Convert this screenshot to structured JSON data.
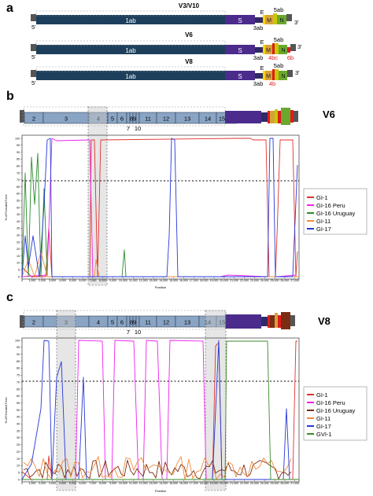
{
  "panels": {
    "a": {
      "letter": "a",
      "genomes": [
        {
          "name": "V3/V10",
          "labels": {
            "end5": "5'",
            "end3": "3'",
            "orf1ab": "1ab",
            "s": "S",
            "e": "E",
            "m": "M",
            "n": "N",
            "orf3ab": "3ab",
            "orf5ab": "5ab"
          }
        },
        {
          "name": "V6",
          "labels": {
            "end5": "5'",
            "end3": "3'",
            "orf1ab": "1ab",
            "s": "S",
            "e": "E",
            "m": "M",
            "n": "N",
            "orf3ab": "3ab",
            "orf5ab": "5ab",
            "extra1": "4bc",
            "extra2": "6b"
          }
        },
        {
          "name": "V8",
          "labels": {
            "end5": "5'",
            "end3": "3'",
            "orf1ab": "1ab",
            "s": "S",
            "e": "E",
            "m": "M",
            "n": "N",
            "orf3ab": "3ab",
            "orf5ab": "5ab",
            "extra1": "4b"
          }
        }
      ]
    },
    "b": {
      "letter": "b",
      "title": "V6",
      "nsps": [
        "2",
        "3",
        "4",
        "5",
        "6",
        "7",
        "8",
        "9",
        "10",
        "11",
        "12",
        "13",
        "14",
        "15",
        "16"
      ],
      "y_axis_label": "% of Permuted Trees",
      "x_axis_label": "Position",
      "legend": [
        "GI-1",
        "GI-16 Peru",
        "GI-16 Uruguay",
        "GI-11",
        "GI-17"
      ]
    },
    "c": {
      "letter": "c",
      "title": "V8",
      "nsps": [
        "2",
        "3",
        "4",
        "5",
        "6",
        "7",
        "8",
        "9",
        "10",
        "11",
        "12",
        "13",
        "14",
        "15",
        "16"
      ],
      "y_axis_label": "% of Permuted Trees",
      "x_axis_label": "Position",
      "legend": [
        "GI-1",
        "GI-16 Peru",
        "GI-16 Uruguay",
        "GI-11",
        "GI-17",
        "GVI-1"
      ]
    }
  },
  "y_ticks": [
    "0",
    "5",
    "10",
    "15",
    "20",
    "25",
    "30",
    "35",
    "40",
    "45",
    "50",
    "55",
    "60",
    "65",
    "70",
    "75",
    "80",
    "85",
    "90",
    "95",
    "100"
  ],
  "x_ticks": [
    "0",
    "1,000",
    "2,000",
    "3,000",
    "4,000",
    "5,000",
    "6,000",
    "7,000",
    "8,000",
    "9,000",
    "10,000",
    "11,000",
    "12,000",
    "13,000",
    "14,000",
    "15,000",
    "16,000",
    "17,000",
    "18,000",
    "19,000",
    "20,000",
    "21,000",
    "22,000",
    "23,000",
    "24,000",
    "25,000",
    "26,000",
    "27,000"
  ],
  "colors": {
    "orf1ab": "#1d3f5c",
    "s": "#4b2b8c",
    "e": "#ffd400",
    "m": "#d6a23a",
    "n": "#6aa82e",
    "orf3": "#2f2a66",
    "orf5": "#c8c800",
    "red_accessory": "#e01b1b",
    "nsp": "#8aa4c4",
    "threshold": "#000000",
    "GI-1": "#e0322e",
    "GI-16 Peru": "#ee22ee",
    "GI-16 Uruguay": "#2b8a2b",
    "GI-16 Uruguay (c)": "#7a2d12",
    "GI-11": "#f08a3c",
    "GI-17": "#2638d8",
    "GVI-1": "#3a8a28"
  }
}
